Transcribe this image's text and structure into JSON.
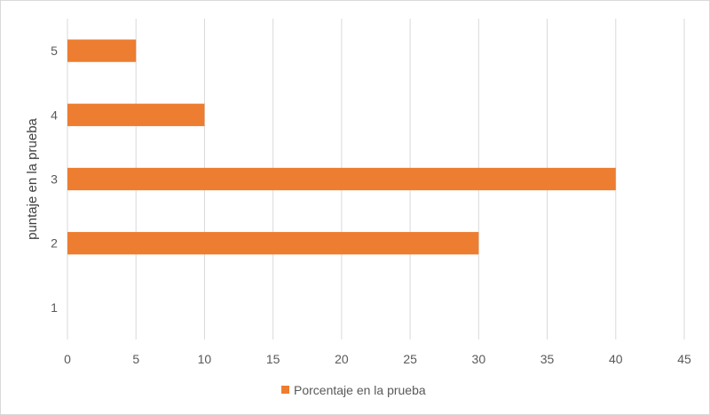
{
  "chart_data": {
    "type": "bar",
    "orientation": "horizontal",
    "title": "",
    "xlabel": "",
    "ylabel": "puntaje en la prueba",
    "categories": [
      "1",
      "2",
      "3",
      "4",
      "5"
    ],
    "series": [
      {
        "name": "Porcentaje en la prueba",
        "values": [
          0,
          30,
          40,
          10,
          5
        ],
        "color": "#ed7d31"
      }
    ],
    "xlim": [
      0,
      45
    ],
    "x_ticks": [
      "0",
      "5",
      "10",
      "15",
      "20",
      "25",
      "30",
      "35",
      "40",
      "45"
    ],
    "grid": "vertical",
    "legend_position": "bottom",
    "colors": {
      "bar": "#ed7d31",
      "grid": "#d9d9d9",
      "text": "#595959"
    }
  }
}
